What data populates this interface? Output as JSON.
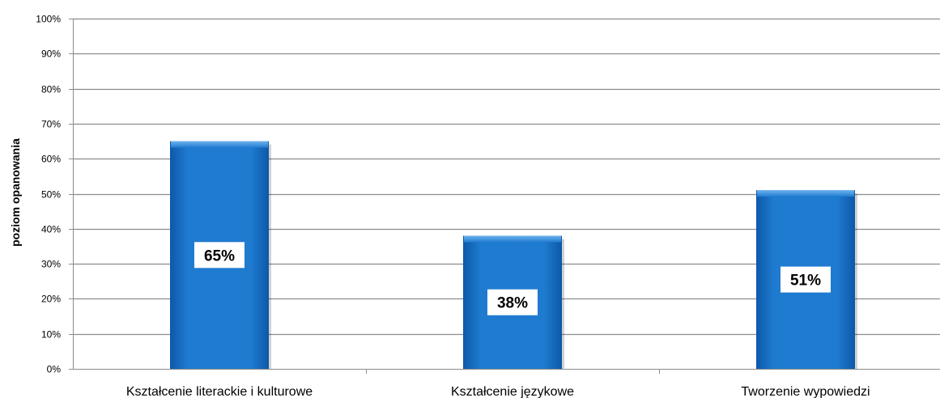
{
  "chart_data": {
    "type": "bar",
    "title": "",
    "xlabel": "",
    "ylabel": "poziom opanowania",
    "categories": [
      "Kształcenie literackie i kulturowe",
      "Kształcenie językowe",
      "Tworzenie wypowiedzi"
    ],
    "values": [
      65,
      38,
      51
    ],
    "data_labels": [
      "65%",
      "38%",
      "51%"
    ],
    "ylim": [
      0,
      100
    ],
    "yticks": [
      0,
      10,
      20,
      30,
      40,
      50,
      60,
      70,
      80,
      90,
      100
    ],
    "ytick_labels": [
      "0%",
      "10%",
      "20%",
      "30%",
      "40%",
      "50%",
      "60%",
      "70%",
      "80%",
      "90%",
      "100%"
    ],
    "grid": true,
    "legend": "none",
    "colors": {
      "bar": "#1f7bd0",
      "bar_dark": "#0d58a8",
      "grid": "#8c8c8c",
      "label_box": "#ffffff"
    }
  }
}
